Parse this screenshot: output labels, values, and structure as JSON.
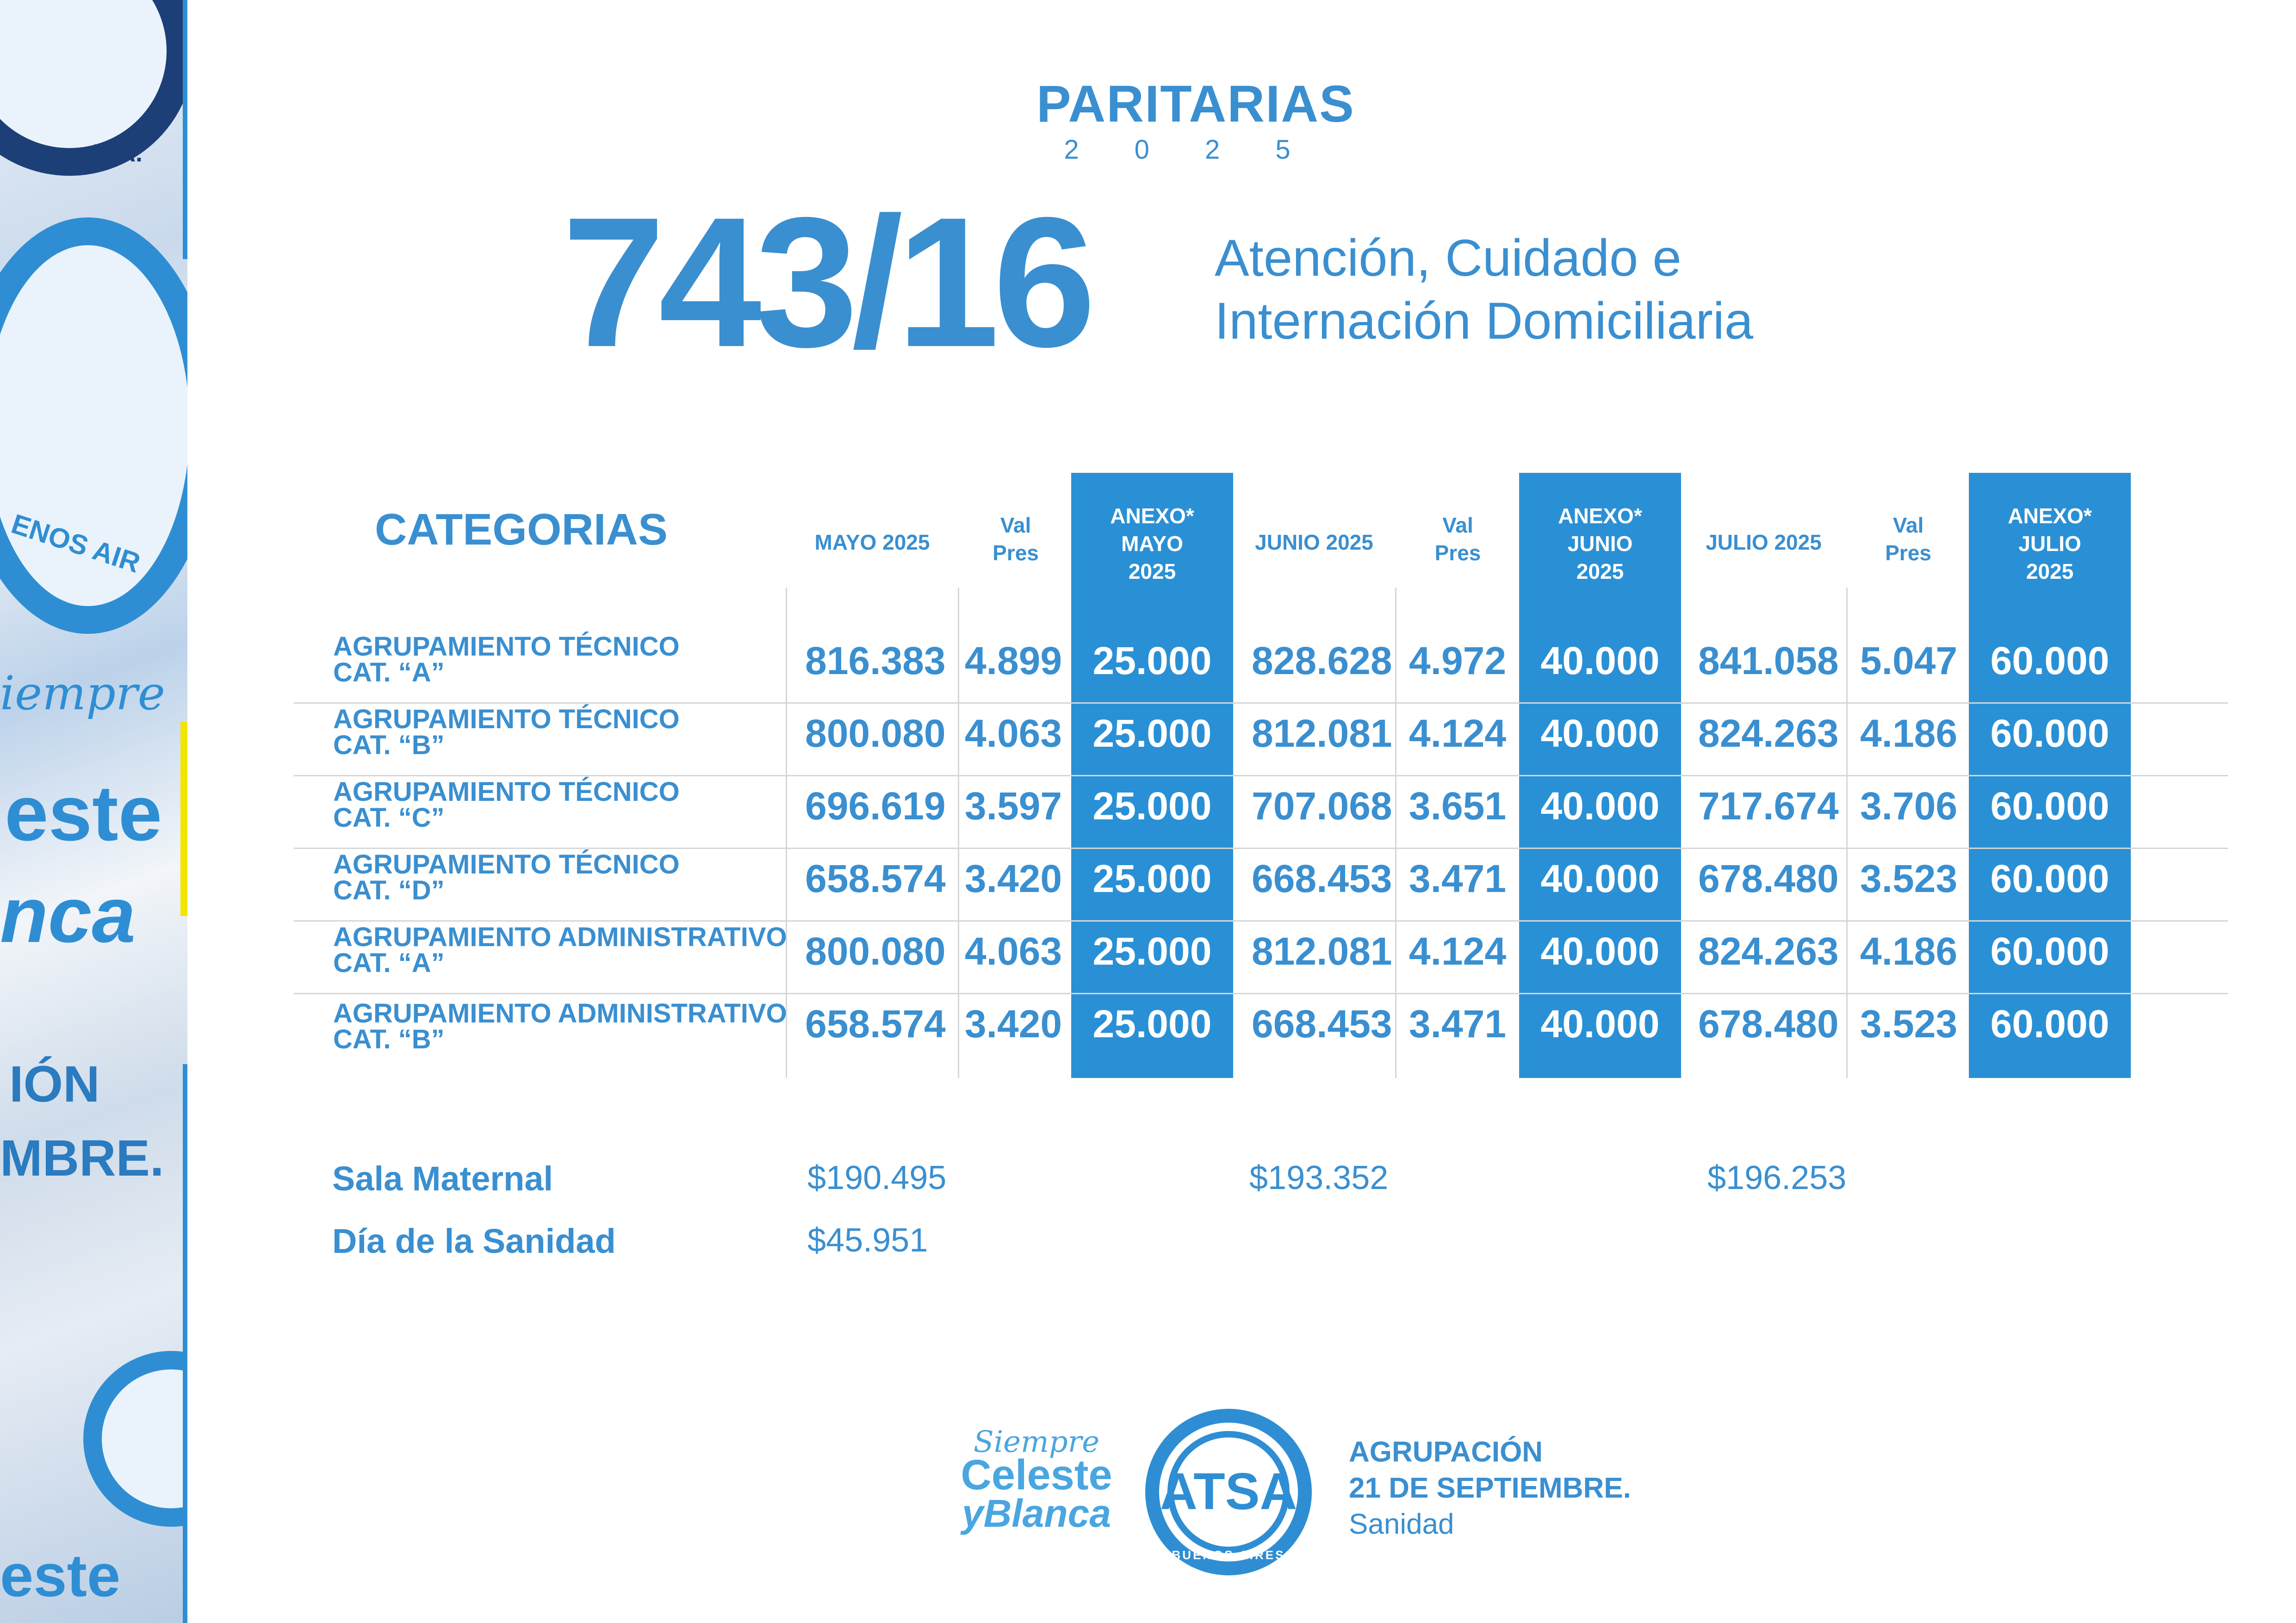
{
  "header": {
    "title": "PARITARIAS",
    "year": "2 0 2 5",
    "agreement_number": "743/16",
    "subtitle_line1": "Atención, Cuidado e",
    "subtitle_line2": "Internación Domiciliaria"
  },
  "table": {
    "categories_heading": "CATEGORIAS",
    "columns": [
      {
        "line1": "MAYO 2025"
      },
      {
        "line1": "Val",
        "line2": "Pres"
      },
      {
        "line1": "ANEXO*",
        "line2": "MAYO",
        "line3": "2025"
      },
      {
        "line1": "JUNIO 2025"
      },
      {
        "line1": "Val",
        "line2": "Pres"
      },
      {
        "line1": "ANEXO*",
        "line2": "JUNIO",
        "line3": "2025"
      },
      {
        "line1": "JULIO 2025"
      },
      {
        "line1": "Val",
        "line2": "Pres"
      },
      {
        "line1": "ANEXO*",
        "line2": "JULIO",
        "line3": "2025"
      }
    ],
    "rows": [
      {
        "line1": "AGRUPAMIENTO TÉCNICO",
        "line2": "CAT. “A”",
        "values": [
          "816.383",
          "4.899",
          "25.000",
          "828.628",
          "4.972",
          "40.000",
          "841.058",
          "5.047",
          "60.000"
        ]
      },
      {
        "line1": "AGRUPAMIENTO TÉCNICO",
        "line2": "CAT. “B”",
        "values": [
          "800.080",
          "4.063",
          "25.000",
          "812.081",
          "4.124",
          "40.000",
          "824.263",
          "4.186",
          "60.000"
        ]
      },
      {
        "line1": "AGRUPAMIENTO TÉCNICO",
        "line2": "CAT. “C”",
        "values": [
          "696.619",
          "3.597",
          "25.000",
          "707.068",
          "3.651",
          "40.000",
          "717.674",
          "3.706",
          "60.000"
        ]
      },
      {
        "line1": "AGRUPAMIENTO TÉCNICO",
        "line2": "CAT. “D”",
        "values": [
          "658.574",
          "3.420",
          "25.000",
          "668.453",
          "3.471",
          "40.000",
          "678.480",
          "3.523",
          "60.000"
        ]
      },
      {
        "line1": "AGRUPAMIENTO ADMINISTRATIVO",
        "line2": "CAT. “A”",
        "values": [
          "800.080",
          "4.063",
          "25.000",
          "812.081",
          "4.124",
          "40.000",
          "824.263",
          "4.186",
          "60.000"
        ]
      },
      {
        "line1": "AGRUPAMIENTO ADMINISTRATIVO",
        "line2": "CAT. “B”",
        "values": [
          "658.574",
          "3.420",
          "25.000",
          "668.453",
          "3.471",
          "40.000",
          "678.480",
          "3.523",
          "60.000"
        ]
      }
    ]
  },
  "extras": {
    "sala_maternal": {
      "label": "Sala Maternal",
      "mayo": "$190.495",
      "junio": "$193.352",
      "julio": "$196.253"
    },
    "dia_sanidad": {
      "label": "Día de la Sanidad",
      "mayo": "$45.951"
    }
  },
  "footer": {
    "siempre": "Siempre",
    "celeste": "Celeste",
    "y_blanca": "yBlanca",
    "logo_letters": "ATSA",
    "logo_ring_text": "BUENOS AIRES",
    "agrupacion_line1": "AGRUPACIÓN",
    "agrupacion_line2": "21 DE SEPTIEMBRE.",
    "agrupacion_line3": "Sanidad"
  },
  "side_strip": {
    "text_ra": "R.A.",
    "text_aires": "ENOS AIR",
    "text_siempre": "iempre",
    "text_celeste": "este",
    "text_blanca": "nca",
    "text_accion": "IÓN",
    "text_mbre": "MBRE.",
    "text_bottom": "este"
  },
  "colors": {
    "brand_blue": "#3a8fd0",
    "highlight_blue": "#2a90d5",
    "accent_yellow": "#f2e500"
  }
}
